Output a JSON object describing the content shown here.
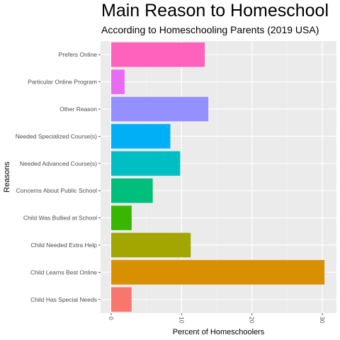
{
  "chart_data": {
    "type": "bar",
    "orientation": "horizontal",
    "title": "Main Reason to Homeschool",
    "subtitle": "According to Homeschooling Parents (2019 USA)",
    "xlabel": "Percent of Homeschoolers",
    "ylabel": "Reasons",
    "xlim": [
      0,
      31
    ],
    "x_ticks": [
      0,
      10,
      20,
      30
    ],
    "grid": true,
    "legend": "none",
    "categories": [
      "Child Has Special Needs",
      "Child Learns Best Online",
      "Child Needed Extra Help",
      "Child Was Bullied at School",
      "Concerns About Public School",
      "Needed Advanced Course(s)",
      "Needed Specialized Course(s)",
      "Other Reason",
      "Particular Online Program",
      "Prefers Online"
    ],
    "values": [
      2.9,
      30.3,
      11.3,
      2.9,
      5.9,
      9.8,
      8.4,
      13.8,
      1.9,
      13.3
    ],
    "colors": [
      "#F8766D",
      "#D89000",
      "#A3A500",
      "#39B600",
      "#00BF7D",
      "#00BFC4",
      "#00B0F6",
      "#9590FF",
      "#E76BF3",
      "#FF62BC"
    ]
  }
}
